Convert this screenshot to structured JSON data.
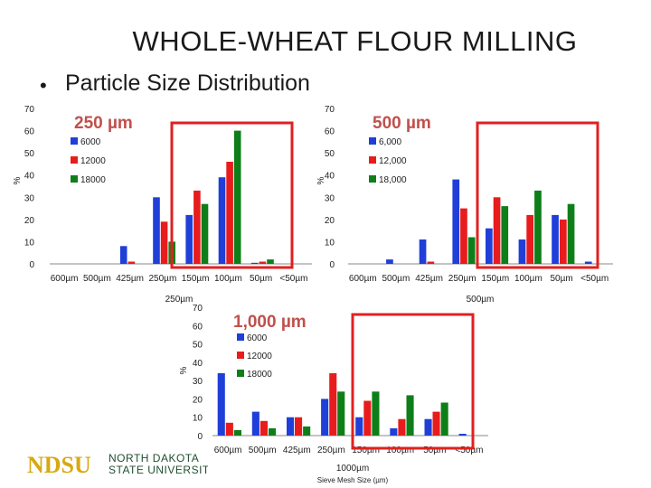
{
  "slide": {
    "title": "WHOLE-WHEAT FLOUR MILLING",
    "bullet": "•",
    "subtitle": "Particle Size Distribution"
  },
  "logo": {
    "mark": "NDSU",
    "line1": "NORTH DAKOTA",
    "line2": "STATE UNIVERSITY"
  },
  "colors": {
    "s1": "#1f3fd8",
    "s2": "#e81c1c",
    "s3": "#0e7f18",
    "highlight": "#e02020",
    "heading": "#c0504d"
  },
  "chart_data": [
    {
      "type": "bar",
      "heading": "250 µm",
      "title": "",
      "xlabel": "250µm",
      "ylabel": "%",
      "ylim": [
        0,
        70
      ],
      "yticks": [
        0,
        10,
        20,
        30,
        40,
        50,
        60,
        70
      ],
      "categories": [
        "600µm",
        "500µm",
        "425µm",
        "250µm",
        "150µm",
        "100µm",
        "50µm",
        "<50µm"
      ],
      "series": [
        {
          "name": "6000",
          "values": [
            0,
            0,
            8,
            30,
            22,
            39,
            0.5,
            0
          ]
        },
        {
          "name": "12000",
          "values": [
            0,
            0,
            1,
            19,
            33,
            46,
            1,
            0
          ]
        },
        {
          "name": "18000",
          "values": [
            0,
            0,
            0,
            10,
            27,
            60,
            2,
            0
          ]
        }
      ],
      "legend": "top-left"
    },
    {
      "type": "bar",
      "heading": "500 µm",
      "title": "",
      "xlabel": "500µm",
      "ylabel": "%",
      "ylim": [
        0,
        70
      ],
      "yticks": [
        0,
        10,
        20,
        30,
        40,
        50,
        60,
        70
      ],
      "categories": [
        "600µm",
        "500µm",
        "425µm",
        "250µm",
        "150µm",
        "100µm",
        "50µm",
        "<50µm"
      ],
      "series": [
        {
          "name": "6,000",
          "values": [
            0,
            2,
            11,
            38,
            16,
            11,
            22,
            1
          ]
        },
        {
          "name": "12,000",
          "values": [
            0,
            0,
            1,
            25,
            30,
            22,
            20,
            0
          ]
        },
        {
          "name": "18,000",
          "values": [
            0,
            0,
            0,
            12,
            26,
            33,
            27,
            0
          ]
        }
      ],
      "legend": "top-left"
    },
    {
      "type": "bar",
      "heading": "1,000 µm",
      "title": "",
      "xlabel": "1000µm",
      "xlabel2": "Sieve Mesh Size (µm)",
      "ylabel": "%",
      "ylim": [
        0,
        70
      ],
      "yticks": [
        0,
        10,
        20,
        30,
        40,
        50,
        60,
        70
      ],
      "categories": [
        "600µm",
        "500µm",
        "425µm",
        "250µm",
        "150µm",
        "100µm",
        "50µm",
        "<50µm"
      ],
      "series": [
        {
          "name": "6000",
          "values": [
            34,
            13,
            10,
            20,
            10,
            4,
            9,
            1
          ]
        },
        {
          "name": "12000",
          "values": [
            7,
            8,
            10,
            34,
            19,
            9,
            13,
            0
          ]
        },
        {
          "name": "18000",
          "values": [
            3,
            4,
            5,
            24,
            24,
            22,
            18,
            0
          ]
        }
      ],
      "legend": "top-left"
    }
  ]
}
